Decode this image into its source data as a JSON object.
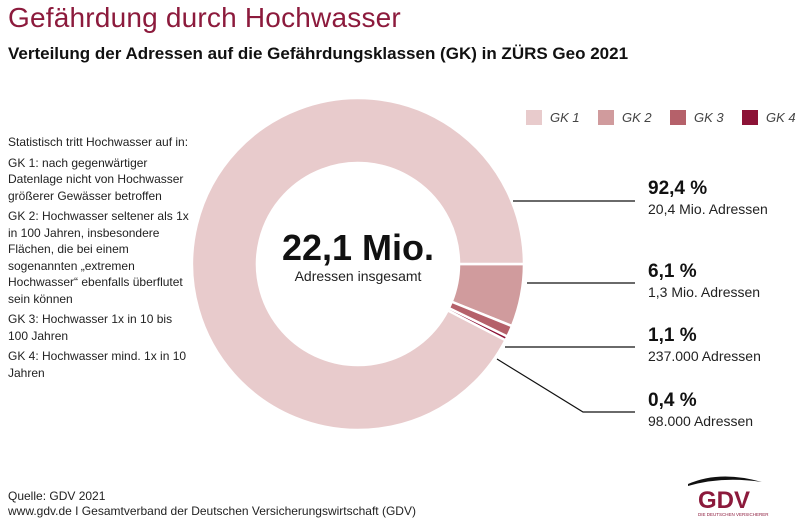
{
  "title": "Gefährdung durch Hochwasser",
  "subtitle": "Verteilung der Adressen auf die Gefährdungsklassen (GK) in ZÜRS Geo 2021",
  "explanation": [
    "Statistisch tritt Hochwasser auf in:",
    "GK 1: nach gegenwärtiger Datenlage nicht von Hochwasser größerer Gewässer betroffen",
    "GK 2: Hochwasser seltener als 1x in 100 Jahren, insbesondere Flächen, die bei einem sogenannten „extremen Hochwasser“ ebenfalls überflutet sein können",
    "GK 3: Hochwasser 1x in 10 bis 100 Jahren",
    "GK 4: Hochwasser mind. 1x in 10 Jahren"
  ],
  "footer": {
    "source": "Quelle: GDV 2021",
    "publisher": "www.gdv.de I Gesamtverband der Deutschen Versicherungswirtschaft (GDV)"
  },
  "logo": {
    "text": "GDV",
    "tagline": "DIE DEUTSCHEN VERSICHERER",
    "color": "#8c1a3c"
  },
  "chart_data": {
    "type": "pie",
    "donut": true,
    "center_value": "22,1 Mio.",
    "center_label": "Adressen insgesamt",
    "legend_position": "top-right",
    "categories": [
      "GK 1",
      "GK 2",
      "GK 3",
      "GK 4"
    ],
    "values": [
      92.4,
      6.1,
      1.1,
      0.4
    ],
    "percent_labels": [
      "92,4 %",
      "6,1 %",
      "1,1 %",
      "0,4 %"
    ],
    "address_labels": [
      "20,4 Mio. Adressen",
      "1,3 Mio. Adressen",
      "237.000 Adressen",
      "98.000 Adressen"
    ],
    "colors": [
      "#e8cbcc",
      "#d09b9d",
      "#b5616a",
      "#8c1236"
    ]
  }
}
